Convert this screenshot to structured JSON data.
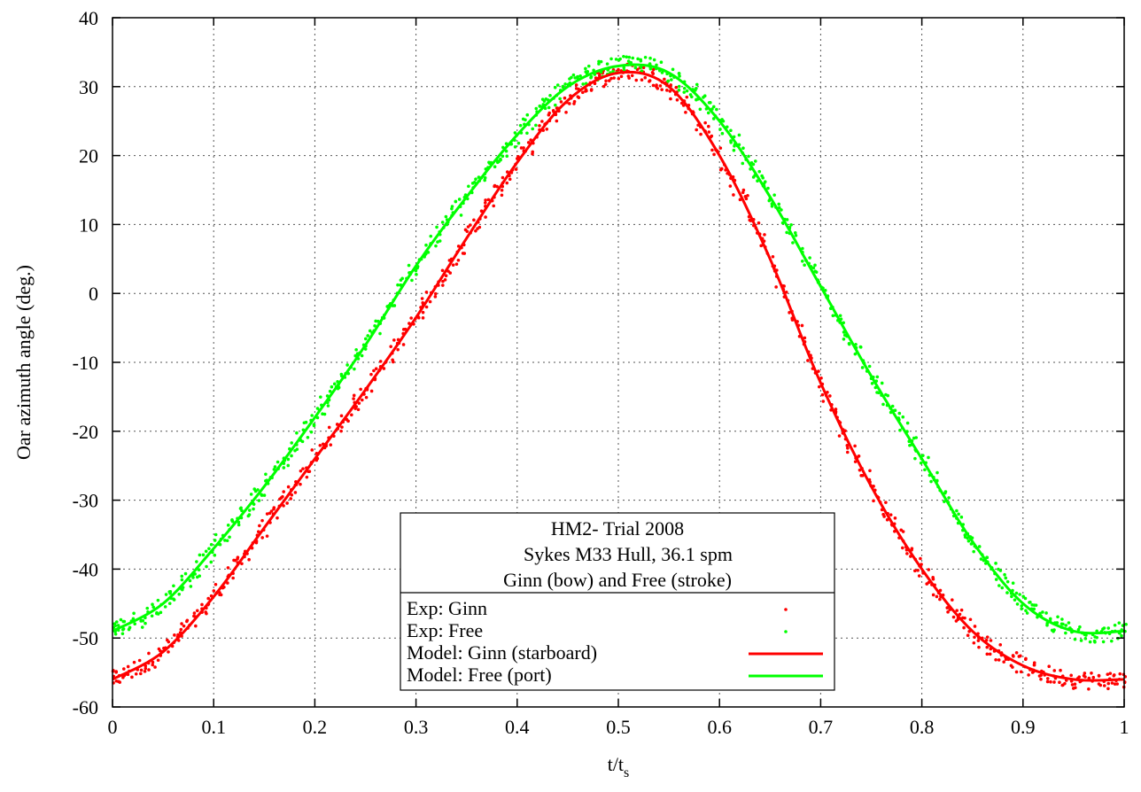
{
  "chart_data": {
    "type": "scatter",
    "xlabel": "t/t",
    "xlabel_subscript": "s",
    "ylabel": "Oar azimuth angle (deg.)",
    "xlim": [
      0,
      1
    ],
    "ylim": [
      -60,
      40
    ],
    "xticks": [
      0,
      0.1,
      0.2,
      0.3,
      0.4,
      0.5,
      0.6,
      0.7,
      0.8,
      0.9,
      1
    ],
    "xtick_labels": [
      "0",
      "0.1",
      "0.2",
      "0.3",
      "0.4",
      "0.5",
      "0.6",
      "0.7",
      "0.8",
      "0.9",
      "1"
    ],
    "yticks": [
      -60,
      -50,
      -40,
      -30,
      -20,
      -10,
      0,
      10,
      20,
      30,
      40
    ],
    "ytick_labels": [
      "-60",
      "-50",
      "-40",
      "-30",
      "-20",
      "-10",
      "0",
      "10",
      "20",
      "30",
      "40"
    ],
    "grid": true,
    "legend_position": "bottom-center",
    "legend_title": [
      "HM2- Trial 2008",
      "Sykes M33 Hull, 36.1 spm",
      "Ginn (bow) and Free (stroke)"
    ],
    "series": [
      {
        "name": "Exp: Ginn",
        "kind": "points",
        "color": "#ff0000",
        "x": [
          0,
          0.05,
          0.1,
          0.15,
          0.2,
          0.25,
          0.3,
          0.35,
          0.4,
          0.45,
          0.5,
          0.55,
          0.6,
          0.65,
          0.7,
          0.75,
          0.8,
          0.85,
          0.9,
          0.95,
          1
        ],
        "y": [
          -56,
          -52,
          -44,
          -34,
          -24,
          -14,
          -3.5,
          8,
          19,
          28,
          32,
          30,
          20,
          5,
          -13,
          -28,
          -40,
          -49,
          -54,
          -56,
          -56
        ]
      },
      {
        "name": "Exp: Free",
        "kind": "points",
        "color": "#00ff00",
        "x": [
          0,
          0.05,
          0.1,
          0.15,
          0.2,
          0.25,
          0.3,
          0.35,
          0.4,
          0.45,
          0.5,
          0.55,
          0.6,
          0.65,
          0.7,
          0.75,
          0.8,
          0.85,
          0.9,
          0.95,
          1
        ],
        "y": [
          -49,
          -45,
          -37,
          -28,
          -18,
          -7.5,
          4,
          14,
          23,
          30,
          33,
          32,
          25,
          14,
          1,
          -12,
          -24,
          -36,
          -45,
          -49,
          -49
        ]
      },
      {
        "name": "Model: Ginn (starboard)",
        "kind": "line",
        "color": "#ff0000",
        "x": [
          0,
          0.05,
          0.1,
          0.15,
          0.2,
          0.25,
          0.3,
          0.35,
          0.4,
          0.45,
          0.5,
          0.55,
          0.6,
          0.65,
          0.7,
          0.75,
          0.8,
          0.85,
          0.9,
          0.95,
          1
        ],
        "y": [
          -56,
          -52,
          -44,
          -34,
          -24,
          -14,
          -3.5,
          8,
          19,
          28,
          32,
          30,
          20,
          5,
          -13,
          -28,
          -40,
          -49,
          -54,
          -56,
          -56
        ]
      },
      {
        "name": "Model: Free (port)",
        "kind": "line",
        "color": "#00ff00",
        "x": [
          0,
          0.05,
          0.1,
          0.15,
          0.2,
          0.25,
          0.3,
          0.35,
          0.4,
          0.45,
          0.5,
          0.55,
          0.6,
          0.65,
          0.7,
          0.75,
          0.8,
          0.85,
          0.9,
          0.95,
          1
        ],
        "y": [
          -49,
          -45,
          -37,
          -28,
          -18,
          -7.5,
          4,
          14,
          23,
          30,
          33,
          32,
          25,
          14,
          1,
          -12,
          -24,
          -36,
          -45,
          -49,
          -49
        ]
      }
    ]
  }
}
